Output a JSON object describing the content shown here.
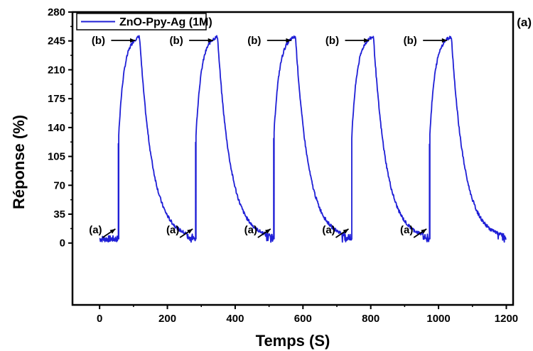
{
  "chart_data": {
    "type": "line",
    "panel_label": "(a)",
    "xlabel": "Temps (S)",
    "ylabel": "Réponse (%)",
    "xlim": [
      -80,
      1220
    ],
    "ylim": [
      -75,
      280
    ],
    "xticks": [
      0,
      200,
      400,
      600,
      800,
      1000,
      1200
    ],
    "yticks": [
      0,
      35,
      70,
      105,
      140,
      175,
      210,
      245,
      280
    ],
    "legend_position": "top-left",
    "series": [
      {
        "name": "ZnO-Ppy-Ag (1M)",
        "color": "#1f1fd6",
        "baseline": 5,
        "baseline_noise": 5,
        "start_x": 0,
        "end_x": 1200,
        "cycles": [
          {
            "on": 55,
            "peak_x": 118,
            "peak_y": 250
          },
          {
            "on": 283,
            "peak_x": 348,
            "peak_y": 250
          },
          {
            "on": 513,
            "peak_x": 578,
            "peak_y": 250
          },
          {
            "on": 743,
            "peak_x": 808,
            "peak_y": 250
          },
          {
            "on": 973,
            "peak_x": 1038,
            "peak_y": 250
          }
        ],
        "rise_start_y": 120,
        "rise_tau": 16,
        "decay_tau": 38
      }
    ],
    "annotations": {
      "on_markers": [
        {
          "label": "(a)",
          "x": 55
        },
        {
          "label": "(a)",
          "x": 283
        },
        {
          "label": "(a)",
          "x": 513
        },
        {
          "label": "(a)",
          "x": 743
        },
        {
          "label": "(a)",
          "x": 973
        }
      ],
      "peak_markers": [
        {
          "label": "(b)",
          "x": 118
        },
        {
          "label": "(b)",
          "x": 348
        },
        {
          "label": "(b)",
          "x": 578
        },
        {
          "label": "(b)",
          "x": 808
        },
        {
          "label": "(b)",
          "x": 1038
        }
      ]
    }
  }
}
